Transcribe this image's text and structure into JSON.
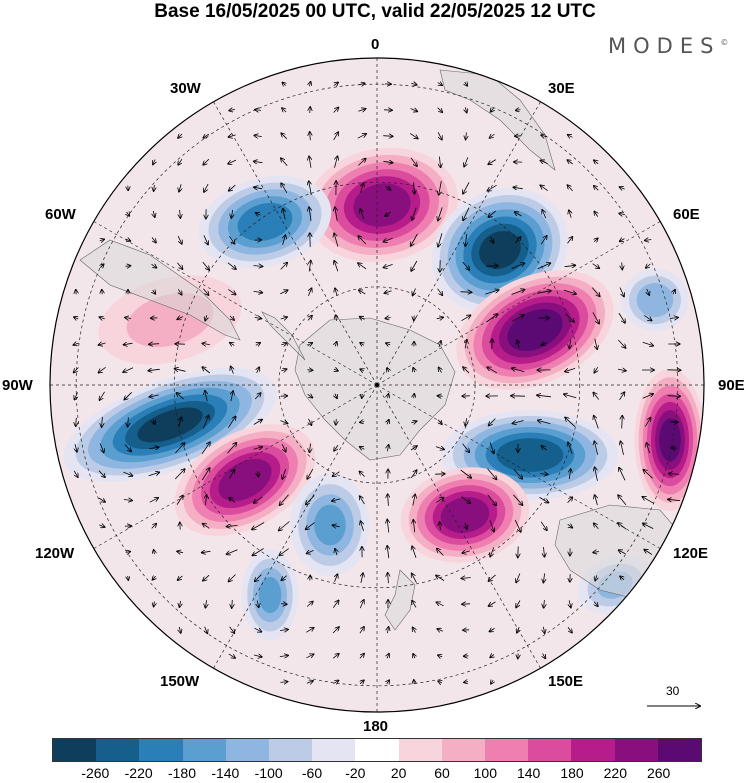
{
  "title": "Base 16/05/2025 00 UTC, valid 22/05/2025 12 UTC",
  "brand": "MODES",
  "brand_mark": "©",
  "longitude_labels": {
    "lon0": "0",
    "lon30e": "30E",
    "lon60e": "60E",
    "lon90e": "90E",
    "lon120e": "120E",
    "lon150e": "150E",
    "lon180": "180",
    "lon150w": "150W",
    "lon120w": "120W",
    "lon90w": "90W",
    "lon60w": "60W",
    "lon30w": "30W"
  },
  "vector_scale": "30",
  "colorbar": {
    "colors": [
      "#0f3d5c",
      "#155f8c",
      "#2a7fb8",
      "#5a9fd0",
      "#8fb6e0",
      "#bccbe6",
      "#e4e4f2",
      "#ffffff",
      "#f8d4dc",
      "#f4afc4",
      "#ee7fb0",
      "#dc4c9e",
      "#b61c8a",
      "#8a0f7e",
      "#5a0a72"
    ],
    "ticks": [
      "-260",
      "-220",
      "-180",
      "-140",
      "-100",
      "-60",
      "-20",
      "20",
      "60",
      "100",
      "140",
      "180",
      "220",
      "260"
    ]
  },
  "anomaly_centers": [
    {
      "sign": "positive",
      "magnitude": 240
    },
    {
      "sign": "negative",
      "magnitude": 200
    },
    {
      "sign": "negative",
      "magnitude": 260
    },
    {
      "sign": "positive",
      "magnitude": 280
    },
    {
      "sign": "negative",
      "magnitude": 120
    },
    {
      "sign": "positive",
      "magnitude": 60
    },
    {
      "sign": "negative",
      "magnitude": 260
    },
    {
      "sign": "positive",
      "magnitude": 240
    },
    {
      "sign": "negative",
      "magnitude": 140
    },
    {
      "sign": "negative",
      "magnitude": 140
    },
    {
      "sign": "positive",
      "magnitude": 260
    },
    {
      "sign": "negative",
      "magnitude": 240
    },
    {
      "sign": "positive",
      "magnitude": 240
    },
    {
      "sign": "negative",
      "magnitude": 100
    }
  ]
}
